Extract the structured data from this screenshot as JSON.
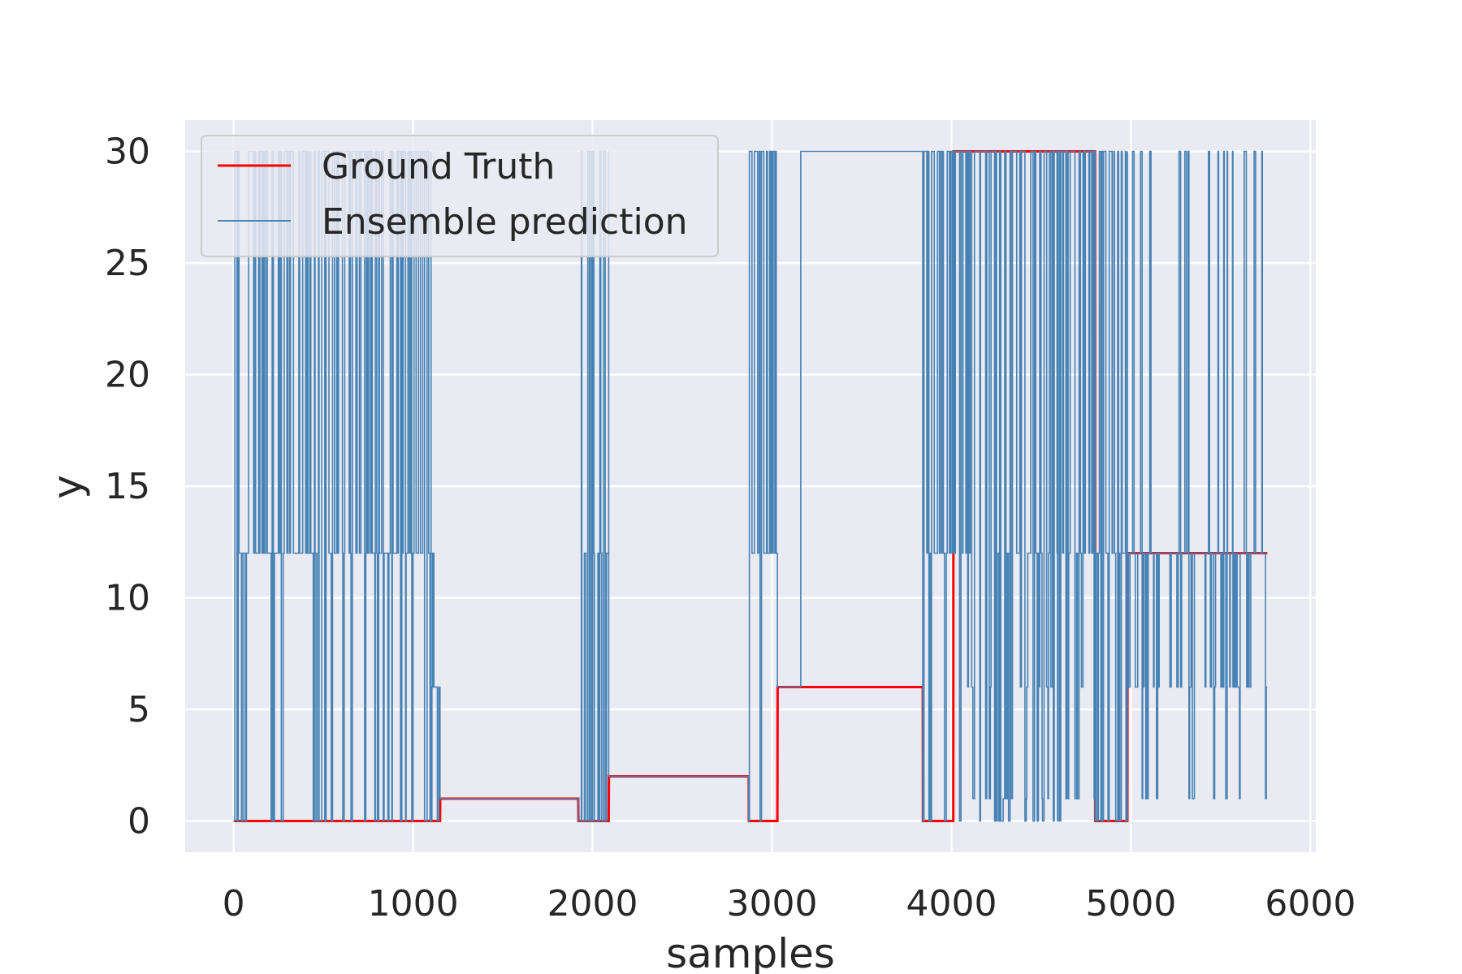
{
  "chart_data": {
    "type": "line",
    "title": "",
    "xlabel": "samples",
    "ylabel": "y",
    "xlim": [
      -270,
      6030
    ],
    "ylim": [
      -1.4,
      31.4
    ],
    "xticks": [
      0,
      1000,
      2000,
      3000,
      4000,
      5000,
      6000
    ],
    "xtick_labels": [
      "0",
      "1000",
      "2000",
      "3000",
      "4000",
      "5000",
      "6000"
    ],
    "yticks": [
      0,
      5,
      10,
      15,
      20,
      25,
      30
    ],
    "ytick_labels": [
      "0",
      "5",
      "10",
      "15",
      "20",
      "25",
      "30"
    ],
    "grid": true,
    "legend_position": "top-left",
    "colors": {
      "background": "#eaeaf2",
      "grid": "#ffffff",
      "ground_truth": "#ff0000",
      "prediction": "#4682b4"
    },
    "series": [
      {
        "name": "Ground Truth",
        "color": "#ff0000",
        "step": true,
        "x": [
          0,
          1150,
          1151,
          1920,
          1921,
          2090,
          2091,
          2870,
          2871,
          3030,
          3031,
          3840,
          3841,
          4010,
          4011,
          4800,
          4801,
          4980,
          4981,
          5760
        ],
        "y": [
          0,
          0,
          1,
          1,
          0,
          0,
          2,
          2,
          0,
          0,
          6,
          6,
          0,
          0,
          30,
          30,
          0,
          0,
          12,
          12
        ]
      },
      {
        "name": "Ensemble prediction",
        "color": "#4682b4",
        "step": true,
        "segments": [
          {
            "start": 0,
            "end": 1100,
            "base": 0,
            "levels": [
              12,
              30
            ],
            "density": 0.85
          },
          {
            "start": 1100,
            "end": 1150,
            "base": 0,
            "levels": [
              6,
              12
            ],
            "density": 0.9
          },
          {
            "start": 1150,
            "end": 1920,
            "base": 1,
            "levels": [],
            "density": 0
          },
          {
            "start": 1920,
            "end": 2090,
            "base": 0,
            "levels": [
              12,
              30
            ],
            "density": 0.5
          },
          {
            "start": 2090,
            "end": 2870,
            "base": 2,
            "levels": [],
            "density": 0
          },
          {
            "start": 2870,
            "end": 3030,
            "base": 0,
            "levels": [
              12,
              30
            ],
            "density": 0.9
          },
          {
            "start": 3030,
            "end": 3160,
            "base": 6,
            "levels": [],
            "density": 0
          },
          {
            "start": 3160,
            "end": 3840,
            "base": 30,
            "levels": [],
            "density": 0
          },
          {
            "start": 3840,
            "end": 4010,
            "base": 0,
            "levels": [
              12,
              30
            ],
            "density": 0.8
          },
          {
            "start": 4010,
            "end": 4800,
            "base": 30,
            "levels": [
              12,
              1,
              0,
              6
            ],
            "density": 0.5
          },
          {
            "start": 4800,
            "end": 4980,
            "base": 0,
            "levels": [
              12,
              30
            ],
            "density": 0.8
          },
          {
            "start": 4980,
            "end": 5760,
            "base": 12,
            "levels": [
              30,
              1,
              6
            ],
            "density": 0.35
          }
        ]
      }
    ]
  }
}
